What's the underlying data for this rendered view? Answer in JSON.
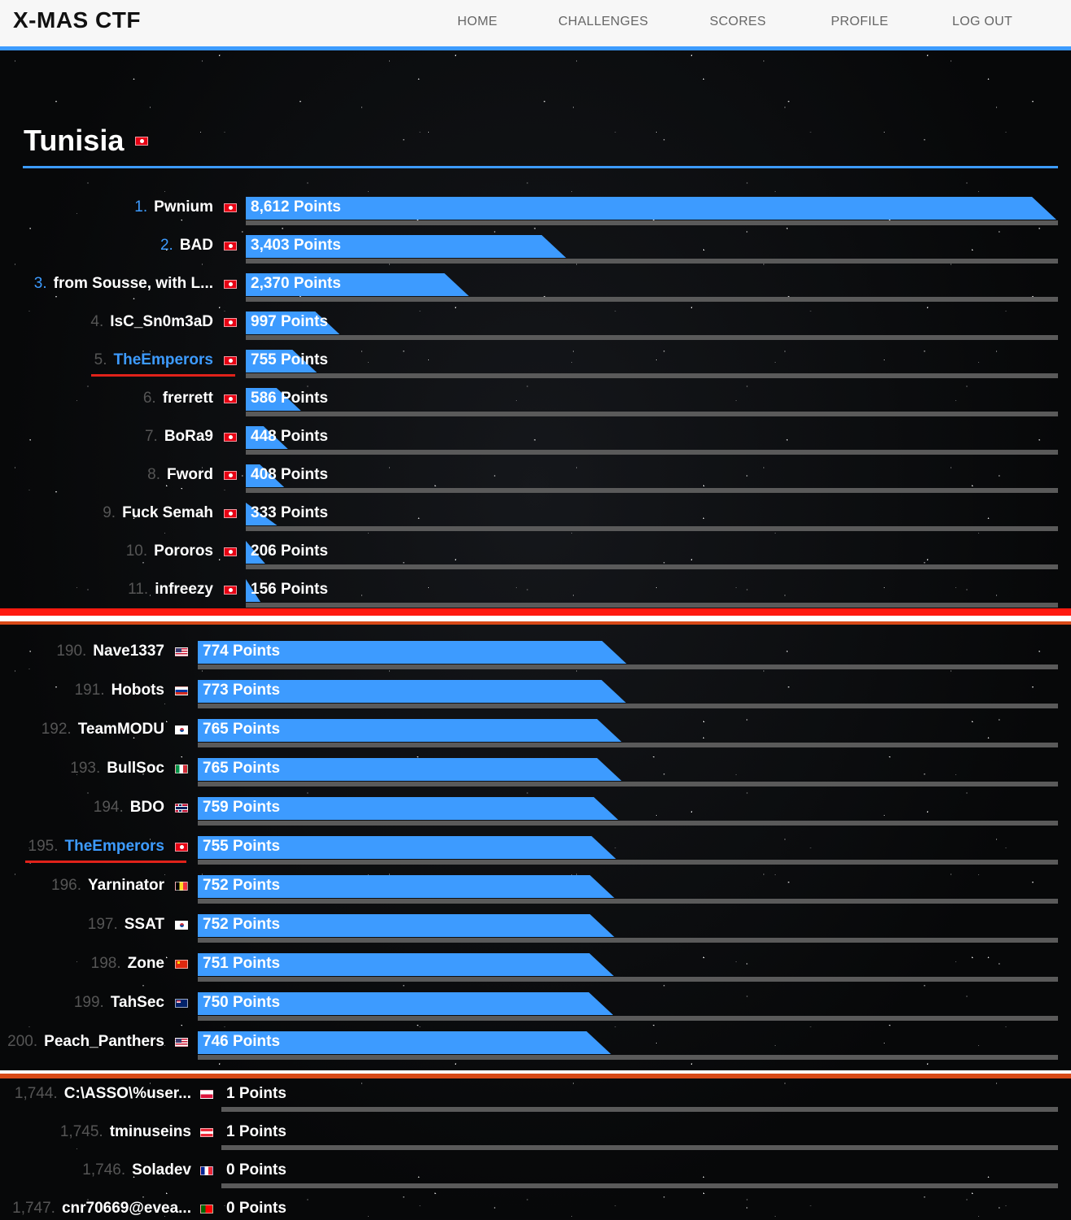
{
  "header": {
    "brand": "X-MAS CTF",
    "nav": [
      "HOME",
      "CHALLENGES",
      "SCORES",
      "PROFILE",
      "LOG OUT"
    ]
  },
  "country": {
    "title": "Tunisia",
    "flag": "tunisia-flag-icon"
  },
  "colors": {
    "accent": "#3d9bff",
    "separator_red": "#ff1a10",
    "separator_orange": "#d84a18",
    "highlight_underline": "#e0221a"
  },
  "country_ranking": [
    {
      "rank": "1.",
      "team": "Pwnium",
      "points": "8,612 Points",
      "score": 8612,
      "flag": "tn"
    },
    {
      "rank": "2.",
      "team": "BAD",
      "points": "3,403 Points",
      "score": 3403,
      "flag": "tn"
    },
    {
      "rank": "3.",
      "team": "from Sousse, with L...",
      "points": "2,370 Points",
      "score": 2370,
      "flag": "tn"
    },
    {
      "rank": "4.",
      "team": "IsC_Sn0m3aD",
      "points": "997 Points",
      "score": 997,
      "flag": "tn"
    },
    {
      "rank": "5.",
      "team": "TheEmperors",
      "points": "755 Points",
      "score": 755,
      "flag": "tn"
    },
    {
      "rank": "6.",
      "team": "frerrett",
      "points": "586 Points",
      "score": 586,
      "flag": "tn"
    },
    {
      "rank": "7.",
      "team": "BoRa9",
      "points": "448 Points",
      "score": 448,
      "flag": "tn"
    },
    {
      "rank": "8.",
      "team": "Fword",
      "points": "408 Points",
      "score": 408,
      "flag": "tn"
    },
    {
      "rank": "9.",
      "team": "Fuck Semah",
      "points": "333 Points",
      "score": 333,
      "flag": "tn"
    },
    {
      "rank": "10.",
      "team": "Pororos",
      "points": "206 Points",
      "score": 206,
      "flag": "tn"
    },
    {
      "rank": "11.",
      "team": "infreezy",
      "points": "156 Points",
      "score": 156,
      "flag": "tn"
    }
  ],
  "global_ranking": [
    {
      "rank": "190.",
      "team": "Nave1337",
      "points": "774 Points",
      "score": 774,
      "flag": "us"
    },
    {
      "rank": "191.",
      "team": "Hobots",
      "points": "773 Points",
      "score": 773,
      "flag": "ru"
    },
    {
      "rank": "192.",
      "team": "TeamMODU",
      "points": "765 Points",
      "score": 765,
      "flag": "kr"
    },
    {
      "rank": "193.",
      "team": "BullSoc",
      "points": "765 Points",
      "score": 765,
      "flag": "it"
    },
    {
      "rank": "194.",
      "team": "BDO",
      "points": "759 Points",
      "score": 759,
      "flag": "no"
    },
    {
      "rank": "195.",
      "team": "TheEmperors",
      "points": "755 Points",
      "score": 755,
      "flag": "tn"
    },
    {
      "rank": "196.",
      "team": "Yarninator",
      "points": "752 Points",
      "score": 752,
      "flag": "be"
    },
    {
      "rank": "197.",
      "team": "SSAT",
      "points": "752 Points",
      "score": 752,
      "flag": "kr"
    },
    {
      "rank": "198.",
      "team": "Zone",
      "points": "751 Points",
      "score": 751,
      "flag": "cn"
    },
    {
      "rank": "199.",
      "team": "TahSec",
      "points": "750 Points",
      "score": 750,
      "flag": "au"
    },
    {
      "rank": "200.",
      "team": "Peach_Panthers",
      "points": "746 Points",
      "score": 746,
      "flag": "us"
    }
  ],
  "bottom_ranking": [
    {
      "rank": "1,744.",
      "team": "C:\\ASSO\\%user...",
      "points": "1 Points",
      "score": 1,
      "flag": "pl"
    },
    {
      "rank": "1,745.",
      "team": "tminuseins",
      "points": "1 Points",
      "score": 1,
      "flag": "at"
    },
    {
      "rank": "1,746.",
      "team": "Soladev",
      "points": "0 Points",
      "score": 0,
      "flag": "fr"
    },
    {
      "rank": "1,747.",
      "team": "cnr70669@evea...",
      "points": "0 Points",
      "score": 0,
      "flag": "pt"
    }
  ]
}
